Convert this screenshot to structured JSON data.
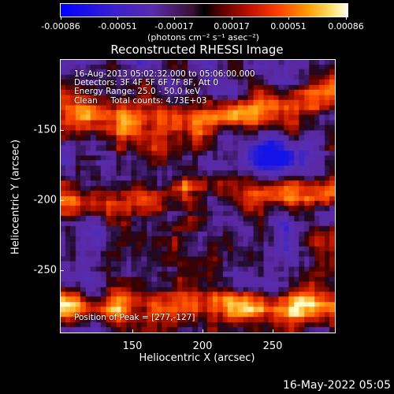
{
  "colorbar": {
    "ticks": [
      "-0.00086",
      "-0.00051",
      "-0.00017",
      "0.00017",
      "0.00051",
      "0.00086"
    ],
    "unit": "(photons cm⁻² s⁻¹ asec⁻²)"
  },
  "title": "Reconstructed RHESSI Image",
  "annotations": {
    "line1": "16-Aug-2013 05:02:32.000 to 05:06:00.000",
    "line2": "Detectors: 3F 4F 5F 6F 7F 8F, Att 0",
    "line3": "Energy Range: 25.0 - 50.0 keV",
    "line4": "Clean     Total counts: 4.73E+03",
    "peak": "Position of Peak = [277,-127]"
  },
  "axes": {
    "xlabel": "Heliocentric X (arcsec)",
    "ylabel": "Heliocentric Y (arcsec)",
    "xticks": [
      "150",
      "200",
      "250"
    ],
    "yticks": [
      "-150",
      "-200",
      "-250"
    ]
  },
  "datestamp": "16-May-2022 05:05",
  "chart_data": {
    "type": "heatmap",
    "title": "Reconstructed RHESSI Image",
    "xlabel": "Heliocentric X (arcsec)",
    "ylabel": "Heliocentric Y (arcsec)",
    "xlim": [
      102,
      291
    ],
    "ylim": [
      -290,
      -102
    ],
    "zlim": [
      -0.00086,
      0.00086
    ],
    "x_ticks": [
      150,
      200,
      250
    ],
    "y_ticks": [
      -150,
      -200,
      -250
    ],
    "peak": [
      277,
      -127
    ],
    "colormap": "blue-purple-black-red-orange-yellow-white"
  }
}
